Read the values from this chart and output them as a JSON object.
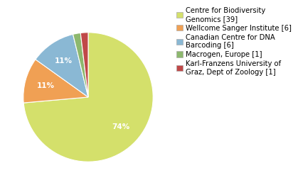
{
  "labels": [
    "Centre for Biodiversity\nGenomics [39]",
    "Wellcome Sanger Institute [6]",
    "Canadian Centre for DNA\nBarcoding [6]",
    "Macrogen, Europe [1]",
    "Karl-Franzens University of\nGraz, Dept of Zoology [1]"
  ],
  "values": [
    39,
    6,
    6,
    1,
    1
  ],
  "colors": [
    "#d4e06b",
    "#f0a054",
    "#8ab8d4",
    "#8db86e",
    "#c04848"
  ],
  "background_color": "#ffffff",
  "text_color": "#ffffff",
  "startangle": 90,
  "counterclock": false,
  "legend_fontsize": 7.2,
  "autopct_fontsize": 7.5,
  "pct_threshold": 5
}
